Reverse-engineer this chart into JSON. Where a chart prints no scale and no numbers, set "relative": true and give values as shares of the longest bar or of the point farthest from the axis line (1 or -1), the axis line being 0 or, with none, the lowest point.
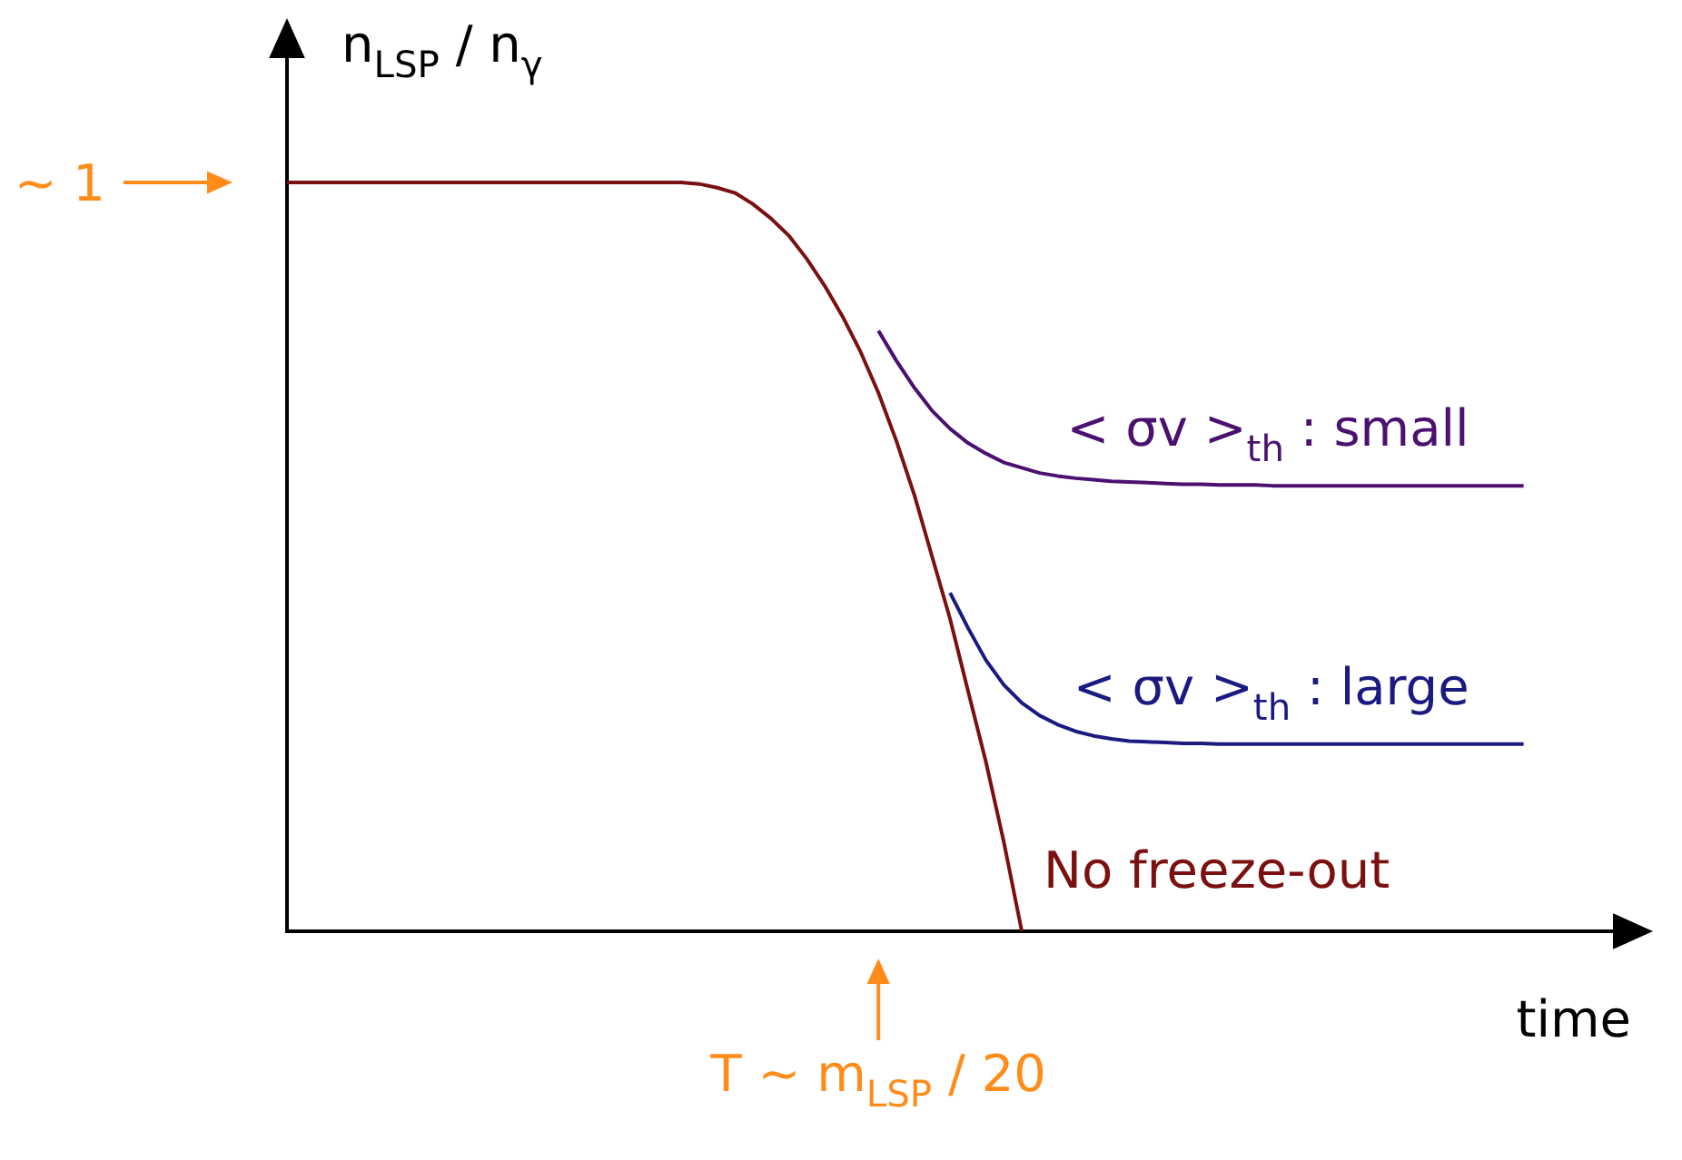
{
  "chart_data": {
    "type": "line",
    "relative": true,
    "ylabel": "n$_{LSP}$ / n$_{γ}$",
    "xlabel": "time",
    "marker": "none",
    "line_style": "solid",
    "categories": [
      null,
      null,
      null,
      null,
      null,
      null,
      null,
      null,
      null,
      null,
      null,
      null,
      null,
      null,
      null,
      null,
      null,
      null,
      null,
      null,
      null,
      null,
      null,
      null,
      null,
      null,
      null,
      null,
      null,
      null,
      null,
      null,
      null,
      null,
      null,
      null,
      null,
      null,
      null,
      null,
      null,
      null,
      null,
      null,
      null,
      null,
      null,
      null,
      null,
      null,
      null,
      null,
      null,
      null,
      null,
      null,
      null,
      null,
      null,
      null,
      null,
      null,
      null,
      null,
      null,
      null,
      null,
      null,
      null,
      null,
      null,
      null,
      null,
      null,
      null,
      null
    ],
    "series": [
      {
        "name": "No freeze-out",
        "color": "#7b1010",
        "values": [
          1,
          1,
          1,
          1,
          1,
          1,
          1,
          1,
          1,
          1,
          1,
          1,
          1,
          1,
          1,
          1,
          1,
          1,
          1,
          1,
          1,
          1,
          1,
          0.998,
          0.993,
          0.986,
          0.971,
          0.952,
          0.929,
          0.898,
          0.862,
          0.821,
          0.774,
          0.719,
          0.655,
          0.583,
          0.5,
          0.417,
          0.321,
          0.226,
          0.119,
          0,
          null,
          null,
          null,
          null,
          null,
          null,
          null,
          null,
          null,
          null,
          null,
          null,
          null,
          null,
          null,
          null,
          null,
          null,
          null,
          null,
          null,
          null,
          null,
          null,
          null,
          null,
          null,
          null,
          null,
          null,
          null,
          null,
          null,
          null
        ]
      },
      {
        "name": "< σv >$_{th}$ : small",
        "color": "#4b1070",
        "values": [
          null,
          null,
          null,
          null,
          null,
          null,
          null,
          null,
          null,
          null,
          null,
          null,
          null,
          null,
          null,
          null,
          null,
          null,
          null,
          null,
          null,
          null,
          null,
          null,
          null,
          null,
          null,
          null,
          null,
          null,
          null,
          null,
          null,
          0.802,
          0.762,
          0.726,
          0.695,
          0.671,
          0.652,
          0.638,
          0.626,
          0.619,
          0.612,
          0.608,
          0.605,
          0.603,
          0.601,
          0.6,
          0.599,
          0.598,
          0.597,
          0.597,
          0.596,
          0.596,
          0.596,
          0.595,
          0.595,
          0.595,
          0.595,
          0.595,
          0.595,
          0.595,
          0.595,
          0.595,
          0.595,
          0.595,
          0.595,
          0.595,
          0.595,
          0.595,
          null,
          null,
          null,
          null,
          null,
          null
        ]
      },
      {
        "name": "< σv >$_{th}$ : large",
        "color": "#1a1a80",
        "values": [
          null,
          null,
          null,
          null,
          null,
          null,
          null,
          null,
          null,
          null,
          null,
          null,
          null,
          null,
          null,
          null,
          null,
          null,
          null,
          null,
          null,
          null,
          null,
          null,
          null,
          null,
          null,
          null,
          null,
          null,
          null,
          null,
          null,
          null,
          null,
          null,
          null,
          0.452,
          0.405,
          0.362,
          0.329,
          0.305,
          0.288,
          0.276,
          0.267,
          0.261,
          0.257,
          0.254,
          0.253,
          0.252,
          0.251,
          0.251,
          0.25,
          0.25,
          0.25,
          0.25,
          0.25,
          0.25,
          0.25,
          0.25,
          0.25,
          0.25,
          0.25,
          0.25,
          0.25,
          0.25,
          0.25,
          0.25,
          0.25,
          0.25,
          null,
          null,
          null,
          null,
          null,
          null
        ]
      }
    ],
    "annotations": [
      "~ 1",
      "T ~ m$_{LSP}$ / 20"
    ]
  }
}
